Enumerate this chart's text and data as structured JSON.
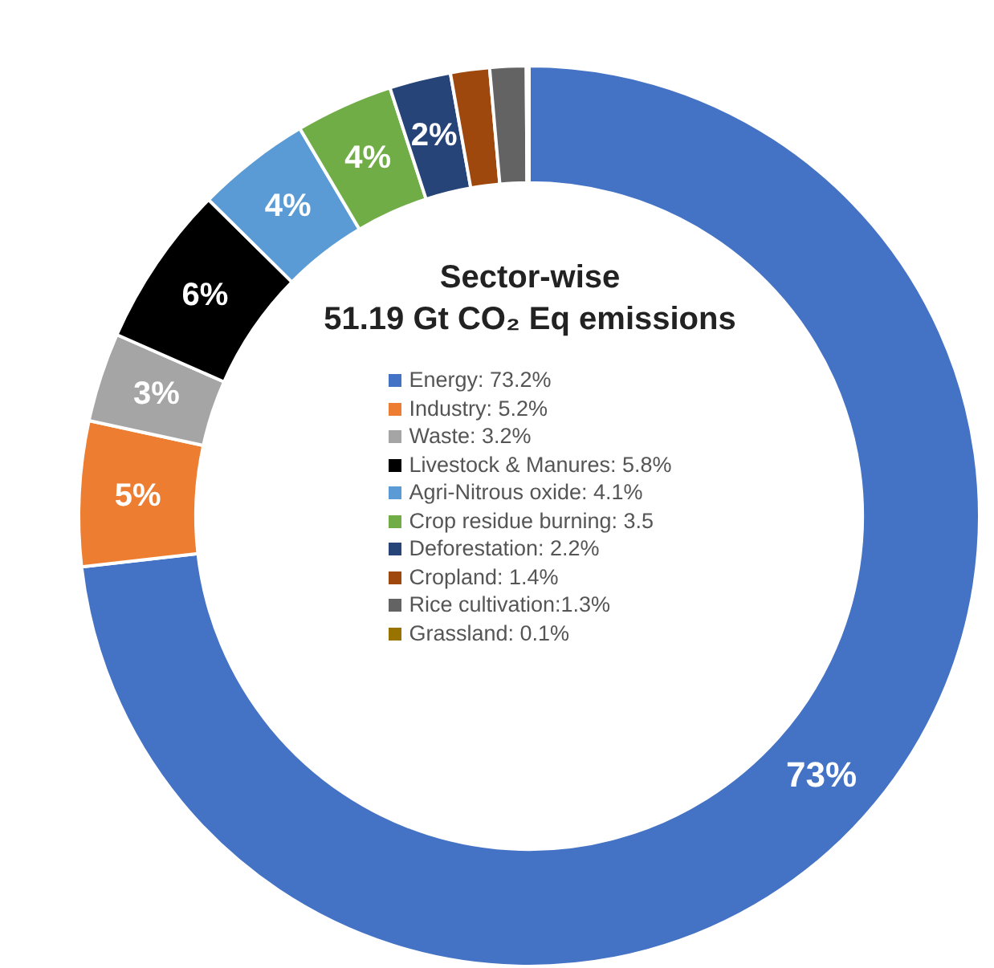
{
  "chart_data": {
    "type": "donut",
    "title": "Sector-wise",
    "subtitle": "51.19 Gt CO₂ Eq emissions",
    "categories": [
      "Energy: 73.2%",
      "Industry: 5.2%",
      "Waste: 3.2%",
      "Livestock & Manures: 5.8%",
      "Agri-Nitrous oxide: 4.1%",
      "Crop residue burning: 3.5",
      "Deforestation: 2.2%",
      "Cropland: 1.4%",
      "Rice cultivation:1.3%",
      "Grassland: 0.1%"
    ],
    "values": [
      73.2,
      5.2,
      3.2,
      5.8,
      4.1,
      3.5,
      2.2,
      1.4,
      1.3,
      0.1
    ],
    "colors": [
      "#4472c4",
      "#ed7d31",
      "#a5a5a5",
      "#000000",
      "#5b9bd5",
      "#70ad47",
      "#264478",
      "#9e480e",
      "#636363",
      "#997300"
    ],
    "value_labels": [
      "73%",
      "5%",
      "3%",
      "6%",
      "4%",
      "4%",
      "2%",
      null,
      null,
      null
    ],
    "legend": "center"
  }
}
